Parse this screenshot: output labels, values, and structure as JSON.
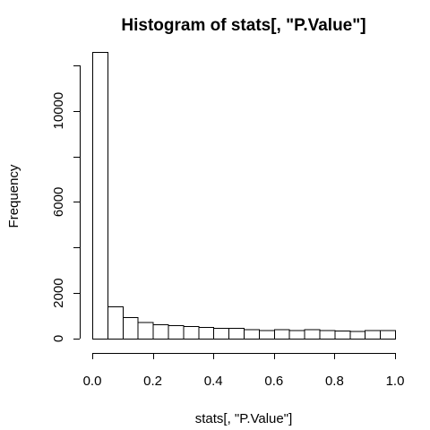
{
  "chart_data": {
    "type": "bar",
    "title": "Histogram of stats[, \"P.Value\"]",
    "xlabel": "stats[, \"P.Value\"]",
    "ylabel": "Frequency",
    "xlim": [
      0,
      1
    ],
    "ylim": [
      0,
      12600
    ],
    "bin_width": 0.05,
    "bins_start": [
      0.0,
      0.05,
      0.1,
      0.15,
      0.2,
      0.25,
      0.3,
      0.35,
      0.4,
      0.45,
      0.5,
      0.55,
      0.6,
      0.65,
      0.7,
      0.75,
      0.8,
      0.85,
      0.9,
      0.95
    ],
    "values": [
      12580,
      1420,
      950,
      720,
      630,
      590,
      560,
      510,
      470,
      480,
      410,
      380,
      410,
      380,
      420,
      370,
      350,
      340,
      370,
      370
    ],
    "x_ticks": [
      {
        "value": 0.0,
        "label": "0.0"
      },
      {
        "value": 0.2,
        "label": "0.2"
      },
      {
        "value": 0.4,
        "label": "0.4"
      },
      {
        "value": 0.6,
        "label": "0.6"
      },
      {
        "value": 0.8,
        "label": "0.8"
      },
      {
        "value": 1.0,
        "label": "1.0"
      }
    ],
    "y_ticks": [
      {
        "value": 0,
        "label": "0"
      },
      {
        "value": 2000,
        "label": "2000"
      },
      {
        "value": 6000,
        "label": "6000"
      },
      {
        "value": 10000,
        "label": "10000"
      }
    ],
    "y_minor_ticks": [
      4000,
      8000,
      12000
    ],
    "grid": false,
    "legend": "none"
  }
}
